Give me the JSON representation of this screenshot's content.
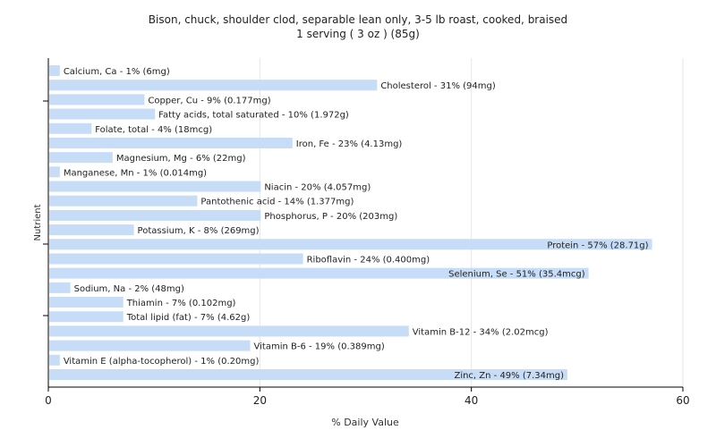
{
  "chart_data": {
    "type": "bar",
    "orientation": "horizontal",
    "title": "Bison, chuck, shoulder clod, separable lean only, 3-5 lb roast, cooked, braised",
    "subtitle": "1 serving ( 3 oz ) (85g)",
    "xlabel": "% Daily Value",
    "ylabel": "Nutrient",
    "xlim": [
      0,
      60
    ],
    "xticks": [
      "0",
      "20",
      "40",
      "60"
    ],
    "xtick_values": [
      0,
      20,
      40,
      60
    ],
    "grid": true,
    "bar_color": "#c6dcf7",
    "categories": [
      "Calcium, Ca",
      "Cholesterol",
      "Copper, Cu",
      "Fatty acids, total saturated",
      "Folate, total",
      "Iron, Fe",
      "Magnesium, Mg",
      "Manganese, Mn",
      "Niacin",
      "Pantothenic acid",
      "Phosphorus, P",
      "Potassium, K",
      "Protein",
      "Riboflavin",
      "Selenium, Se",
      "Sodium, Na",
      "Thiamin",
      "Total lipid (fat)",
      "Vitamin B-12",
      "Vitamin B-6",
      "Vitamin E (alpha-tocopherol)",
      "Zinc, Zn"
    ],
    "values": [
      1,
      31,
      9,
      10,
      4,
      23,
      6,
      1,
      20,
      14,
      20,
      8,
      57,
      24,
      51,
      2,
      7,
      7,
      34,
      19,
      1,
      49
    ],
    "labels": [
      "Calcium, Ca - 1% (6mg)",
      "Cholesterol - 31% (94mg)",
      "Copper, Cu - 9% (0.177mg)",
      "Fatty acids, total saturated - 10% (1.972g)",
      "Folate, total - 4% (18mcg)",
      "Iron, Fe - 23% (4.13mg)",
      "Magnesium, Mg - 6% (22mg)",
      "Manganese, Mn - 1% (0.014mg)",
      "Niacin - 20% (4.057mg)",
      "Pantothenic acid - 14% (1.377mg)",
      "Phosphorus, P - 20% (203mg)",
      "Potassium, K - 8% (269mg)",
      "Protein - 57% (28.71g)",
      "Riboflavin - 24% (0.400mg)",
      "Selenium, Se - 51% (35.4mcg)",
      "Sodium, Na - 2% (48mg)",
      "Thiamin - 7% (0.102mg)",
      "Total lipid (fat) - 7% (4.62g)",
      "Vitamin B-12 - 34% (2.02mcg)",
      "Vitamin B-6 - 19% (0.389mg)",
      "Vitamin E (alpha-tocopherol) - 1% (0.20mg)",
      "Zinc, Zn - 49% (7.34mg)"
    ]
  }
}
